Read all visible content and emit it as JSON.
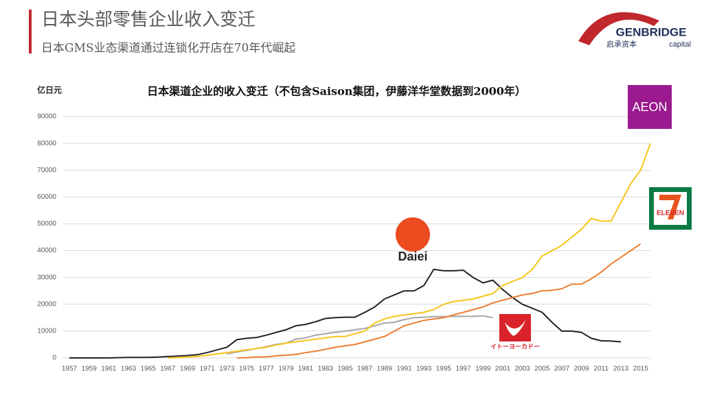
{
  "header": {
    "title": "日本头部零售企业收入变迁",
    "subtitle": "日本GMS业态渠道通过连锁化开店在70年代崛起"
  },
  "logo": {
    "name": "GENBRIDGE",
    "tagline_cn": "启承资本",
    "tagline_en": "capital"
  },
  "chart_data": {
    "type": "line",
    "title": "日本渠道企业的收入变迁（不包含Saison集团，伊藤洋华堂数据到2000年）",
    "y_label": "亿日元",
    "x": [
      1957,
      1958,
      1959,
      1960,
      1961,
      1962,
      1963,
      1964,
      1965,
      1966,
      1967,
      1968,
      1969,
      1970,
      1971,
      1972,
      1973,
      1974,
      1975,
      1976,
      1977,
      1978,
      1979,
      1980,
      1981,
      1982,
      1983,
      1984,
      1985,
      1986,
      1987,
      1988,
      1989,
      1990,
      1991,
      1992,
      1993,
      1994,
      1995,
      1996,
      1997,
      1998,
      1999,
      2000,
      2001,
      2002,
      2003,
      2004,
      2005,
      2006,
      2007,
      2008,
      2009,
      2010,
      2011,
      2012,
      2013,
      2014,
      2015,
      2016
    ],
    "xlim": [
      1957,
      2016
    ],
    "xticks": [
      1957,
      1959,
      1961,
      1963,
      1965,
      1967,
      1969,
      1971,
      1973,
      1975,
      1977,
      1979,
      1981,
      1983,
      1985,
      1987,
      1989,
      1991,
      1993,
      1995,
      1997,
      1999,
      2001,
      2003,
      2005,
      2007,
      2009,
      2011,
      2013,
      2015
    ],
    "ylim": [
      0,
      90000
    ],
    "yticks": [
      0,
      10000,
      20000,
      30000,
      40000,
      50000,
      60000,
      70000,
      80000,
      90000
    ],
    "grid": true,
    "series": [
      {
        "name": "Daiei",
        "color": "#222222",
        "values": [
          0,
          0,
          0,
          0,
          0,
          100,
          200,
          200,
          200,
          300,
          500,
          700,
          900,
          1200,
          2000,
          3000,
          4000,
          6800,
          7300,
          7600,
          8500,
          9500,
          10500,
          12000,
          12500,
          13500,
          14700,
          15000,
          15200,
          15200,
          17000,
          19000,
          22000,
          23500,
          25000,
          25000,
          27000,
          33000,
          32500,
          32500,
          32700,
          30000,
          28000,
          29000,
          25500,
          22500,
          20000,
          18500,
          17000,
          13300,
          10000,
          10000,
          9500,
          7300,
          6400,
          6300,
          6000,
          null,
          null,
          null
        ]
      },
      {
        "name": "イトーヨーカドー",
        "color": "#a6a6a6",
        "values": [
          null,
          null,
          null,
          null,
          null,
          null,
          null,
          null,
          null,
          null,
          null,
          null,
          null,
          null,
          null,
          null,
          1500,
          2200,
          2800,
          3500,
          4200,
          5000,
          5500,
          7000,
          7500,
          8500,
          9000,
          9500,
          10000,
          10500,
          11000,
          12000,
          13000,
          13300,
          14300,
          15000,
          15200,
          15400,
          15400,
          15500,
          15500,
          15500,
          15700,
          15000,
          null,
          null,
          null,
          null,
          null,
          null,
          null,
          null,
          null,
          null,
          null,
          null,
          null,
          null,
          null,
          null
        ]
      },
      {
        "name": "AEON",
        "color": "#f5c518",
        "values": [
          null,
          null,
          null,
          null,
          null,
          null,
          null,
          null,
          null,
          null,
          0,
          100,
          300,
          600,
          1000,
          1500,
          2000,
          2500,
          3000,
          3500,
          4000,
          4800,
          5500,
          6000,
          6500,
          7000,
          7500,
          8000,
          8000,
          9000,
          10000,
          13000,
          14500,
          15500,
          16000,
          16500,
          17000,
          18000,
          20000,
          21000,
          21500,
          22000,
          23000,
          24000,
          27000,
          28500,
          30000,
          33000,
          38000,
          40000,
          42000,
          45000,
          48000,
          52000,
          51000,
          51000,
          58000,
          65000,
          70000,
          80000
        ]
      },
      {
        "name": "ELEVEN",
        "color": "#ed7d31",
        "values": [
          null,
          null,
          null,
          null,
          null,
          null,
          null,
          null,
          null,
          null,
          null,
          null,
          null,
          null,
          null,
          null,
          null,
          0,
          100,
          300,
          400,
          800,
          1000,
          1300,
          2000,
          2500,
          3200,
          4000,
          4500,
          5000,
          6000,
          7000,
          8000,
          10000,
          12000,
          13000,
          14000,
          14500,
          15000,
          16000,
          17000,
          18000,
          19000,
          20500,
          21500,
          22500,
          23500,
          24000,
          25000,
          25200,
          25800,
          27500,
          27500,
          29500,
          32000,
          35000,
          37500,
          40000,
          42500,
          null
        ]
      }
    ]
  }
}
